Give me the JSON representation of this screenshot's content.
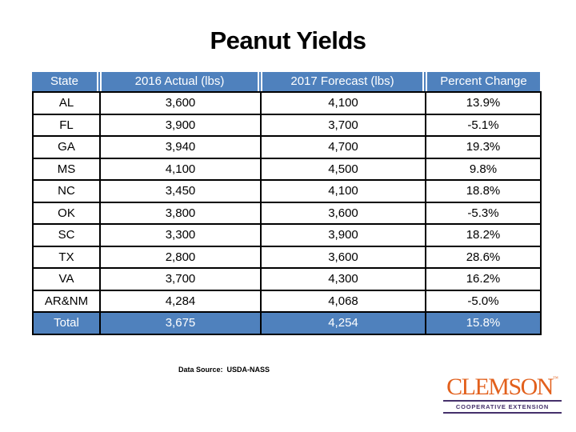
{
  "slide": {
    "title": "Peanut Yields",
    "source_note": "Data Source:  USDA-NASS"
  },
  "table": {
    "columns": [
      "State",
      "2016 Actual (lbs)",
      "2017 Forecast (lbs)",
      "Percent Change"
    ],
    "rows": [
      {
        "state": "AL",
        "actual": "3,600",
        "forecast": "4,100",
        "change": "13.9%"
      },
      {
        "state": "FL",
        "actual": "3,900",
        "forecast": "3,700",
        "change": "-5.1%"
      },
      {
        "state": "GA",
        "actual": "3,940",
        "forecast": "4,700",
        "change": "19.3%"
      },
      {
        "state": "MS",
        "actual": "4,100",
        "forecast": "4,500",
        "change": "9.8%"
      },
      {
        "state": "NC",
        "actual": "3,450",
        "forecast": "4,100",
        "change": "18.8%"
      },
      {
        "state": "OK",
        "actual": "3,800",
        "forecast": "3,600",
        "change": "-5.3%"
      },
      {
        "state": "SC",
        "actual": "3,300",
        "forecast": "3,900",
        "change": "18.2%"
      },
      {
        "state": "TX",
        "actual": "2,800",
        "forecast": "3,600",
        "change": "28.6%"
      },
      {
        "state": "VA",
        "actual": "3,700",
        "forecast": "4,300",
        "change": "16.2%"
      },
      {
        "state": "AR&NM",
        "actual": "4,284",
        "forecast": "4,068",
        "change": "-5.0%"
      }
    ],
    "total_row": {
      "state": "Total",
      "actual": "3,675",
      "forecast": "4,254",
      "change": "15.8%"
    },
    "colors": {
      "header_bg": "#4F81BD",
      "header_text": "#FFFFFF",
      "body_text": "#000000",
      "border": "#000000"
    }
  },
  "logo": {
    "brand": "CLEMSON",
    "trademark": "™",
    "tagline": "COOPERATIVE EXTENSION",
    "colors": {
      "orange": "#E2601C",
      "purple": "#45306B"
    }
  }
}
